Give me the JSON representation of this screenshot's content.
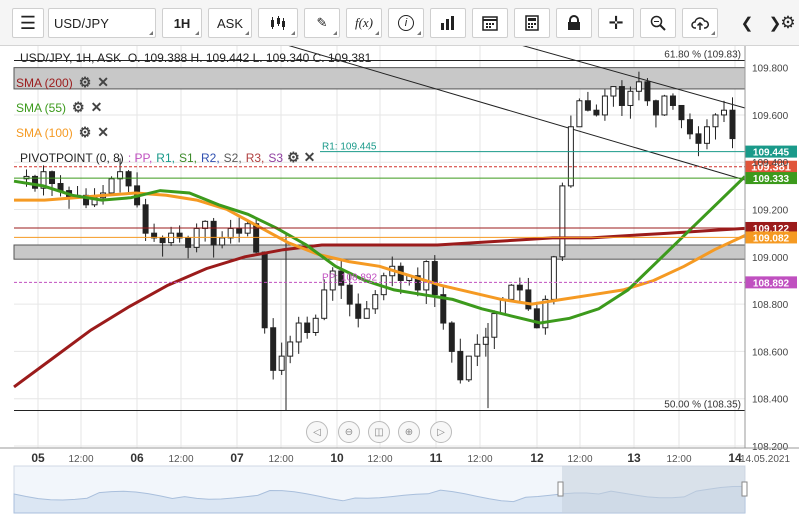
{
  "toolbar": {
    "symbol": "USD/JPY",
    "interval": "1H",
    "price_type": "ASK",
    "icons": [
      "menu-icon",
      "candle-type-icon",
      "draw-pencil-icon",
      "fx-icon",
      "info-icon",
      "volume-bars-icon",
      "calendar-icon",
      "calculator-icon",
      "lock-icon",
      "crosshair-icon",
      "zoom-icon",
      "cloud-upload-icon",
      "prev-icon",
      "next-icon",
      "gear-icon"
    ],
    "fx_label": "f(x)"
  },
  "header": {
    "title": "USD/JPY, 1H, ASK",
    "ohlc": "O. 109.388 H. 109.442 L. 109.340 C. 109.381"
  },
  "indicators": [
    {
      "label": "SMA (200)",
      "color": "#9b1b1b"
    },
    {
      "label": "SMA (55)",
      "color": "#3c9a1c"
    },
    {
      "label": "SMA (100)",
      "color": "#f59a23"
    }
  ],
  "pivot": {
    "label": "PIVOTPOINT (0, 8)",
    "items": [
      {
        "text": ": PP,",
        "color": "#c050c0"
      },
      {
        "text": "R1,",
        "color": "#1a9a8a"
      },
      {
        "text": "S1,",
        "color": "#3c8a2a"
      },
      {
        "text": "R2,",
        "color": "#3050b0"
      },
      {
        "text": "S2,",
        "color": "#5a5a5a"
      },
      {
        "text": "R3,",
        "color": "#b04040"
      },
      {
        "text": "S3",
        "color": "#9040a0"
      }
    ]
  },
  "chart_data": {
    "type": "candlestick",
    "ylim": [
      108.2,
      109.9
    ],
    "y_ticks": [
      "109.800",
      "109.600",
      "109.400",
      "109.200",
      "109.000",
      "108.800",
      "108.600",
      "108.400",
      "108.200"
    ],
    "x_ticks": [
      {
        "label": "05",
        "bold": true
      },
      {
        "label": "12:00",
        "bold": false
      },
      {
        "label": "06",
        "bold": true
      },
      {
        "label": "12:00",
        "bold": false
      },
      {
        "label": "07",
        "bold": true
      },
      {
        "label": "12:00",
        "bold": false
      },
      {
        "label": "10",
        "bold": true
      },
      {
        "label": "12:00",
        "bold": false
      },
      {
        "label": "11",
        "bold": true
      },
      {
        "label": "12:00",
        "bold": false
      },
      {
        "label": "12",
        "bold": true
      },
      {
        "label": "12:00",
        "bold": false
      },
      {
        "label": "13",
        "bold": true
      },
      {
        "label": "12:00",
        "bold": false
      },
      {
        "label": "14",
        "bold": true
      },
      {
        "label": "14.05.2021",
        "bold": false
      }
    ],
    "close_path": [
      109.33,
      109.34,
      109.29,
      109.36,
      109.31,
      109.28,
      109.25,
      109.26,
      109.22,
      109.25,
      109.27,
      109.33,
      109.36,
      109.3,
      109.22,
      109.1,
      109.08,
      109.06,
      109.1,
      109.08,
      109.04,
      109.12,
      109.15,
      109.05,
      109.08,
      109.12,
      109.1,
      109.14,
      109.02,
      108.7,
      108.52,
      108.58,
      108.64,
      108.72,
      108.68,
      108.74,
      108.86,
      108.94,
      108.88,
      108.8,
      108.74,
      108.78,
      108.84,
      108.92,
      108.96,
      108.9,
      108.92,
      108.86,
      108.98,
      108.84,
      108.72,
      108.6,
      108.48,
      108.58,
      108.63,
      108.66,
      108.76,
      108.82,
      108.88,
      108.86,
      108.78,
      108.7,
      108.82,
      109.0,
      109.3,
      109.55,
      109.66,
      109.62,
      109.6,
      109.68,
      109.72,
      109.64,
      109.7,
      109.74,
      109.66,
      109.6,
      109.68,
      109.64,
      109.58,
      109.52,
      109.48,
      109.55,
      109.6,
      109.62,
      109.5
    ],
    "sma200": [
      108.45,
      108.57,
      108.69,
      108.79,
      108.88,
      108.95,
      109.0,
      109.03,
      109.05,
      109.05,
      109.05,
      109.05,
      109.06,
      109.07,
      109.08,
      109.08,
      109.09,
      109.1,
      109.11,
      109.12
    ],
    "sma55": [
      109.32,
      109.3,
      109.26,
      109.24,
      109.25,
      109.28,
      109.27,
      109.22,
      109.18,
      109.12,
      109.05,
      108.96,
      108.9,
      108.86,
      108.84,
      108.82,
      108.78,
      108.75,
      108.72,
      108.74,
      108.78,
      108.86,
      108.98,
      109.1,
      109.22,
      109.34
    ],
    "sma100": [
      109.24,
      109.24,
      109.25,
      109.26,
      109.27,
      109.26,
      109.24,
      109.2,
      109.13,
      109.06,
      109.01,
      108.98,
      108.96,
      108.92,
      108.88,
      108.85,
      108.82,
      108.8,
      108.82,
      108.84,
      108.86,
      108.9,
      108.96,
      109.03,
      109.09
    ],
    "levels": [
      {
        "name": "r1",
        "label": "R1: 109.445",
        "value": 109.445,
        "color": "#1a9a8a",
        "badge": "109.445",
        "badge_color": "#1a9a8a"
      },
      {
        "name": "current",
        "label": "",
        "value": 109.381,
        "color": "#d0302a",
        "badge": "109.381",
        "badge_color": "#e0553a"
      },
      {
        "name": "sma55",
        "label": "",
        "value": 109.333,
        "color": "#3c9a1c",
        "badge": "109.333",
        "badge_color": "#3c9a1c"
      },
      {
        "name": "sma200",
        "label": "",
        "value": 109.122,
        "color": "#9b1b1b",
        "badge": "109.122",
        "badge_color": "#9b1b1b"
      },
      {
        "name": "sma100",
        "label": "",
        "value": 109.082,
        "color": "#f59a23",
        "badge": "109.082",
        "badge_color": "#f59a23"
      },
      {
        "name": "pp",
        "label": "PP: 108.892",
        "value": 108.892,
        "color": "#c050c0",
        "badge": "108.892",
        "badge_color": "#c050c0"
      }
    ],
    "fib_levels": [
      {
        "label": "61.80 % (109.83)",
        "value": 109.83
      },
      {
        "label": "50.00 % (108.35)",
        "value": 108.35
      }
    ],
    "zones": [
      {
        "from": 109.71,
        "to": 109.8
      },
      {
        "from": 108.99,
        "to": 109.05
      }
    ]
  }
}
